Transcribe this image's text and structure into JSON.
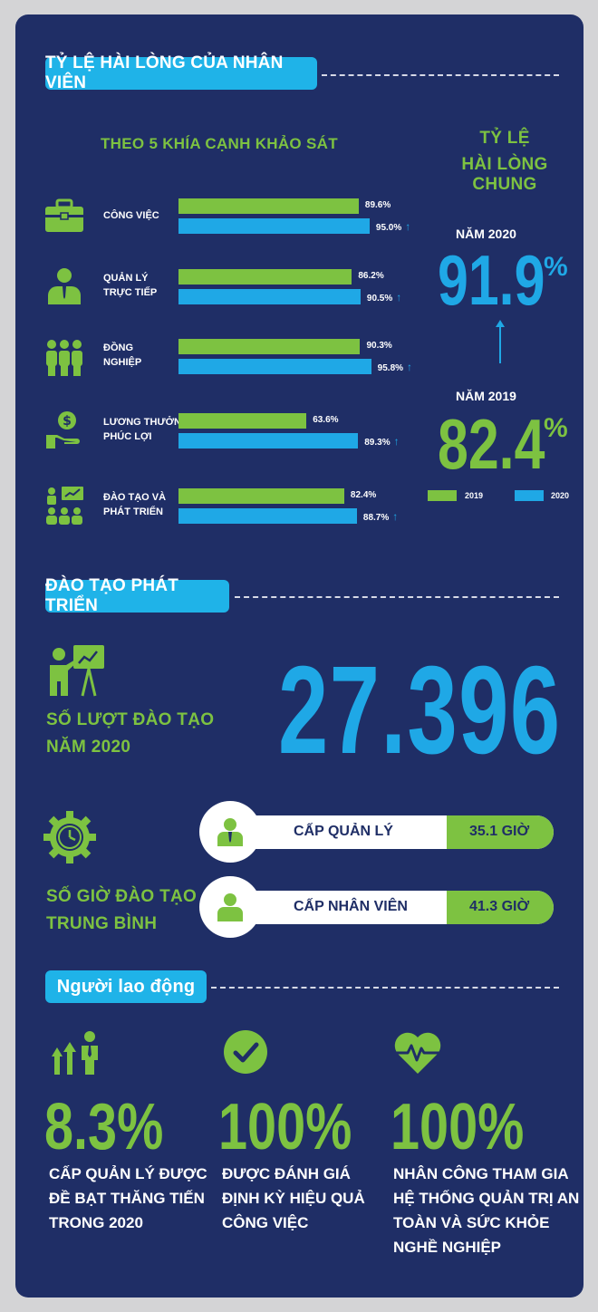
{
  "satisfaction": {
    "section_title": "TỶ LỆ HÀI LÒNG CỦA NHÂN VIÊN",
    "subtitle": "THEO 5 KHÍA CẠNH KHẢO SÁT",
    "overall_title_line1": "TỶ LỆ",
    "overall_title_line2": "HÀI LÒNG CHUNG",
    "year2020_label": "NĂM 2020",
    "year2020_value": "91.9",
    "year2019_label": "NĂM 2019",
    "year2019_value": "82.4",
    "percent_sign": "%",
    "legend_2019": "2019",
    "legend_2020": "2020",
    "colors": {
      "y2019": "#7dc241",
      "y2020": "#1fa8e6"
    }
  },
  "chart_data": {
    "type": "bar",
    "categories": [
      "CÔNG VIỆC",
      "QUẢN LÝ TRỰC TIẾP",
      "ĐỒNG NGHIỆP",
      "LƯƠNG THƯỞNG, PHÚC LỢI",
      "ĐÀO TẠO VÀ PHÁT TRIỂN"
    ],
    "series": [
      {
        "name": "2019",
        "values": [
          89.6,
          86.2,
          90.3,
          63.6,
          82.4
        ]
      },
      {
        "name": "2020",
        "values": [
          95.0,
          90.5,
          95.8,
          89.3,
          88.7
        ]
      }
    ],
    "label_lines": [
      [
        "CÔNG VIỆC"
      ],
      [
        "QUẢN LÝ",
        "TRỰC TIẾP"
      ],
      [
        "ĐỒNG",
        "NGHIỆP"
      ],
      [
        "LƯƠNG THƯỞNG,",
        "PHÚC LỢI"
      ],
      [
        "ĐÀO TẠO VÀ",
        "PHÁT TRIỂN"
      ]
    ],
    "value_labels_2019": [
      "89.6%",
      "86.2%",
      "90.3%",
      "63.6%",
      "82.4%"
    ],
    "value_labels_2020": [
      "95.0%",
      "90.5%",
      "95.8%",
      "89.3%",
      "88.7%"
    ],
    "icons": [
      "briefcase-icon",
      "manager-icon",
      "team-icon",
      "salary-icon",
      "training-icon"
    ],
    "legend": [
      "2019",
      "2020"
    ],
    "legend_placement": "bottom-right"
  },
  "training": {
    "section_title": "ĐÀO TẠO PHÁT TRIỂN",
    "sessions_label_line1": "SỐ LƯỢT ĐÀO TẠO",
    "sessions_label_line2": "NĂM 2020",
    "sessions_value": "27.396",
    "hours_label_line1": "SỐ GIỜ ĐÀO TẠO",
    "hours_label_line2": "TRUNG BÌNH",
    "manager_label": "CẤP QUẢN LÝ",
    "manager_hours": "35.1 GIỜ",
    "staff_label": "CẤP NHÂN VIÊN",
    "staff_hours": "41.3 GIỜ"
  },
  "workforce": {
    "section_title": "Người lao động",
    "stat1_value": "8.3%",
    "stat1_lines": [
      "CẤP QUẢN LÝ ĐƯỢC",
      "ĐỀ BẠT THĂNG TIẾN",
      "TRONG 2020"
    ],
    "stat2_value": "100%",
    "stat2_lines": [
      "ĐƯỢC ĐÁNH GIÁ",
      "ĐỊNH KỲ HIỆU QUẢ",
      "CÔNG VIỆC"
    ],
    "stat3_value": "100%",
    "stat3_lines": [
      "NHÂN CÔNG THAM GIA",
      "HỆ THỐNG QUẢN TRỊ AN",
      "TOÀN VÀ SỨC KHỎE",
      "NGHỀ NGHIỆP"
    ]
  }
}
